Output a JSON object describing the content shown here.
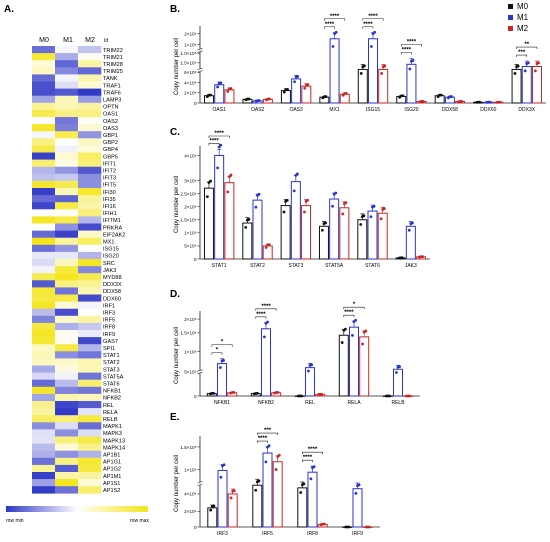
{
  "panel_labels": [
    "A.",
    "B.",
    "C.",
    "D.",
    "E."
  ],
  "legend": {
    "items": [
      {
        "name": "M0",
        "color": "#111111"
      },
      {
        "name": "M1",
        "color": "#2b35c8"
      },
      {
        "name": "M2",
        "color": "#c62828"
      }
    ]
  },
  "heatmap": {
    "columns": [
      "M0",
      "M1",
      "M2"
    ],
    "id_header": "Id",
    "low_label": "row min",
    "high_label": "row max",
    "colors": {
      "low": "#2f36c6",
      "mid": "#ffffff",
      "high": "#f4e51a"
    },
    "rows": [
      "TRIM22",
      "TRIM21",
      "TRIM28",
      "TRIM25",
      "TANK",
      "TRAF1",
      "TRAF6",
      "LAMP3",
      "OPTN",
      "OAS1",
      "OAS2",
      "OAS3",
      "GBP1",
      "GBP2",
      "GBP4",
      "GBP5",
      "IFIT1",
      "IFIT2",
      "IFIT3",
      "IFIT5",
      "IFI30",
      "IFI35",
      "IFI16",
      "IFIH1",
      "IFITM1",
      "PRKRA",
      "EIF2AK2",
      "MX1",
      "ISG15",
      "ISG20",
      "SRC",
      "JAK3",
      "MYD88",
      "DDX3X",
      "DDX58",
      "DDX60",
      "IRF1",
      "IRF3",
      "IRF5",
      "IRF8",
      "IRF9",
      "GAS7",
      "SPI1",
      "STAT1",
      "STAT2",
      "STAT3",
      "STAT5A",
      "STAT6",
      "NFKB1",
      "NFKB2",
      "REL",
      "RELA",
      "RELB",
      "MAPK1",
      "MAPK3",
      "MAPK13",
      "MAPK14",
      "AP1B1",
      "AP1G1",
      "AP1G2",
      "AP1M1",
      "AP1S1",
      "AP1S2"
    ]
  },
  "chart_data": [
    {
      "panel": "B.",
      "type": "bar",
      "ylabel": "Copy number per cell",
      "y_ticks": [
        "0",
        "2×10⁴",
        "4×10⁴",
        "6×10⁴",
        "1.5×10⁵",
        "1.0×10⁵",
        "1×10⁶",
        "2×10⁶"
      ],
      "categories": [
        "OAS1",
        "OAS2",
        "OAS3",
        "MX1",
        "ISG15",
        "ISG20",
        "DDX58",
        "DDX60",
        "DDX3X"
      ],
      "series": [
        {
          "name": "M0",
          "values": [
            0.1,
            0.05,
            0.17,
            0.08,
            0.46,
            0.09,
            0.1,
            0.01,
            0.46
          ]
        },
        {
          "name": "M1",
          "values": [
            0.25,
            0.03,
            0.33,
            0.88,
            0.88,
            0.53,
            0.08,
            0.01,
            0.5
          ]
        },
        {
          "name": "M2",
          "values": [
            0.18,
            0.05,
            0.23,
            0.12,
            0.46,
            0.02,
            0.02,
            0.01,
            0.5
          ]
        }
      ],
      "significance": [
        {
          "category": "MX1",
          "label": "****"
        },
        {
          "category": "MX1",
          "label": "****"
        },
        {
          "category": "ISG15",
          "label": "****"
        },
        {
          "category": "ISG15",
          "label": "****"
        },
        {
          "category": "ISG20",
          "label": "****"
        },
        {
          "category": "ISG20",
          "label": "****"
        },
        {
          "category": "DDX3X",
          "label": "***"
        },
        {
          "category": "DDX3X",
          "label": "**"
        }
      ]
    },
    {
      "panel": "C.",
      "type": "bar",
      "ylabel": "Copy number per cell",
      "y_ticks": [
        "0",
        "5×10⁵",
        "1×10⁶",
        "1.5×10⁶",
        "2×10⁶",
        "2.5×10⁶",
        "3×10⁶",
        "4×10⁶"
      ],
      "categories": [
        "STAT1",
        "STAT2",
        "STAT3",
        "STAT5A",
        "STAT6",
        "JAK3"
      ],
      "series": [
        {
          "name": "M0",
          "values": [
            0.65,
            0.33,
            0.49,
            0.3,
            0.36,
            0.01
          ]
        },
        {
          "name": "M1",
          "values": [
            0.95,
            0.54,
            0.71,
            0.55,
            0.44,
            0.3
          ]
        },
        {
          "name": "M2",
          "values": [
            0.7,
            0.12,
            0.49,
            0.47,
            0.42,
            0.02
          ]
        }
      ],
      "significance": [
        {
          "category": "STAT1",
          "label": "****"
        },
        {
          "category": "STAT1",
          "label": "****"
        }
      ]
    },
    {
      "panel": "D.",
      "type": "bar",
      "ylabel": "Copy number per cell",
      "y_ticks": [
        "0",
        "5×10⁵",
        "1×10⁶",
        "1.5×10⁶",
        "2×10⁶"
      ],
      "categories": [
        "NFKB1",
        "NFKB2",
        "REL",
        "RELA",
        "RELB"
      ],
      "series": [
        {
          "name": "M0",
          "values": [
            0.03,
            0.03,
            0.0,
            0.75,
            0.0
          ]
        },
        {
          "name": "M1",
          "values": [
            0.4,
            0.83,
            0.35,
            0.85,
            0.33
          ]
        },
        {
          "name": "M2",
          "values": [
            0.04,
            0.04,
            0.02,
            0.73,
            0.0
          ]
        }
      ],
      "significance": [
        {
          "category": "NFKB1",
          "label": "*"
        },
        {
          "category": "NFKB1",
          "label": "*"
        },
        {
          "category": "NFKB2",
          "label": "****"
        },
        {
          "category": "NFKB2",
          "label": "****"
        },
        {
          "category": "RELA",
          "label": "****"
        },
        {
          "category": "RELA",
          "label": "*"
        }
      ]
    },
    {
      "panel": "E.",
      "type": "bar",
      "ylabel": "Copy number per cell",
      "y_ticks": [
        "0",
        "2×10⁴",
        "4×10⁴",
        "1×10⁵",
        "1.5×10⁵"
      ],
      "categories": [
        "IRF3",
        "IRF5",
        "IRF8",
        "IRF9"
      ],
      "series": [
        {
          "name": "M0",
          "values": [
            0.22,
            0.48,
            0.45,
            0.0
          ]
        },
        {
          "name": "M1",
          "values": [
            0.65,
            0.85,
            0.63,
            0.44
          ]
        },
        {
          "name": "M2",
          "values": [
            0.38,
            0.75,
            0.03,
            0.0
          ]
        }
      ],
      "significance": [
        {
          "category": "IRF5",
          "label": "****"
        },
        {
          "category": "IRF5",
          "label": "***"
        },
        {
          "category": "IRF8",
          "label": "****"
        },
        {
          "category": "IRF8",
          "label": "****"
        }
      ]
    }
  ]
}
